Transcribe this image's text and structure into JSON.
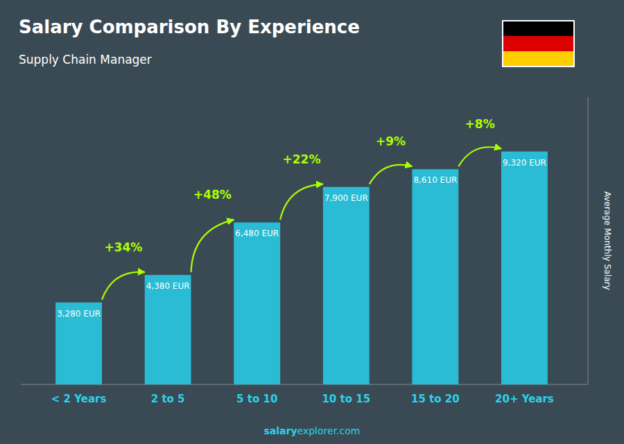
{
  "chart_data": {
    "type": "bar",
    "title": "Salary Comparison By Experience",
    "subtitle": "Supply Chain Manager",
    "categories": [
      "< 2 Years",
      "2 to 5",
      "5 to 10",
      "10 to 15",
      "15 to 20",
      "20+ Years"
    ],
    "values": [
      3280,
      4380,
      6480,
      7900,
      8610,
      9320
    ],
    "value_labels": [
      "3,280 EUR",
      "4,380 EUR",
      "6,480 EUR",
      "7,900 EUR",
      "8,610 EUR",
      "9,320 EUR"
    ],
    "data_labels": true,
    "annotations": [
      "+34%",
      "+48%",
      "+22%",
      "+9%",
      "+8%"
    ],
    "y_label": "Average Monthly Salary",
    "footer": [
      "salary",
      "explorer.com"
    ],
    "color": "#29bcd4",
    "ylim": [
      0,
      11500
    ],
    "yticks": [],
    "grid": false,
    "tick_labels": "x"
  }
}
